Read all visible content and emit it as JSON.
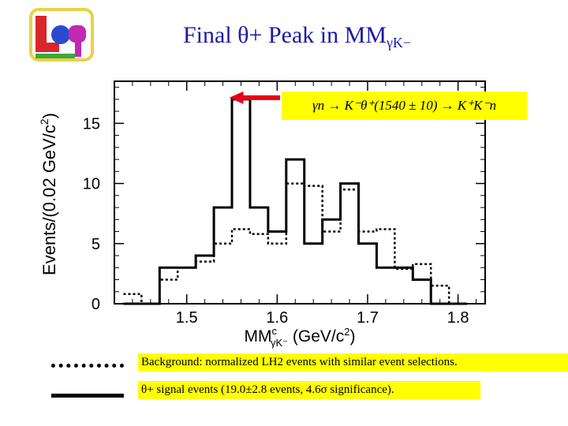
{
  "slide": {
    "title": "Final θ+  Peak in MM",
    "title_sub": "γK−"
  },
  "logo": {
    "name": "logo-icon",
    "colors": [
      "#e8d24a",
      "#d9262c",
      "#2a4bd0",
      "#c02ab0",
      "#3aa83a"
    ]
  },
  "annotation": {
    "text": "γn → K⁻θ⁺(1540 ± 10) → K⁺K⁻n",
    "color": "#e4001b"
  },
  "legend": {
    "background": "Background: normalized LH2 events with similar event selections.",
    "signal": "θ+ signal events (19.0±2.8 events, 4.6σ significance)."
  },
  "chart_data": {
    "type": "histogram",
    "xlabel": "MM",
    "xlabel_sup": "c",
    "xlabel_sub": "γK⁻",
    "xlabel_unit": " (GeV/c",
    "xlabel_unit_sup": "2",
    "xlabel_unit_end": ")",
    "ylabel": "Events/(0.02 GeV/c",
    "ylabel_sup": "2",
    "ylabel_end": ")",
    "xlim": [
      1.42,
      1.83
    ],
    "ylim": [
      0,
      18.5
    ],
    "x_ticks": [
      1.5,
      1.6,
      1.7,
      1.8
    ],
    "x_tick_labels": [
      "1.5",
      "1.6",
      "1.7",
      "1.8"
    ],
    "y_ticks": [
      0,
      5,
      10,
      15
    ],
    "y_tick_labels": [
      "0",
      "5",
      "10",
      "15"
    ],
    "bin_edges": [
      1.43,
      1.45,
      1.47,
      1.49,
      1.51,
      1.53,
      1.55,
      1.57,
      1.59,
      1.61,
      1.63,
      1.65,
      1.67,
      1.69,
      1.71,
      1.73,
      1.75,
      1.77,
      1.79,
      1.81
    ],
    "series": [
      {
        "name": "θ+ signal events",
        "style": "solid",
        "values": [
          0,
          0,
          3,
          3,
          4,
          8,
          17,
          8,
          6,
          12,
          5,
          7,
          10,
          5,
          3,
          3,
          2,
          0,
          0
        ]
      },
      {
        "name": "Background",
        "style": "dotted",
        "values": [
          0.8,
          0,
          2,
          3,
          3.5,
          5,
          6.2,
          5.8,
          5,
          10,
          9.8,
          6,
          9.5,
          6,
          6.2,
          2.9,
          3.3,
          1.5,
          0
        ]
      }
    ],
    "peak_x": 1.54,
    "peak_y": 17
  }
}
